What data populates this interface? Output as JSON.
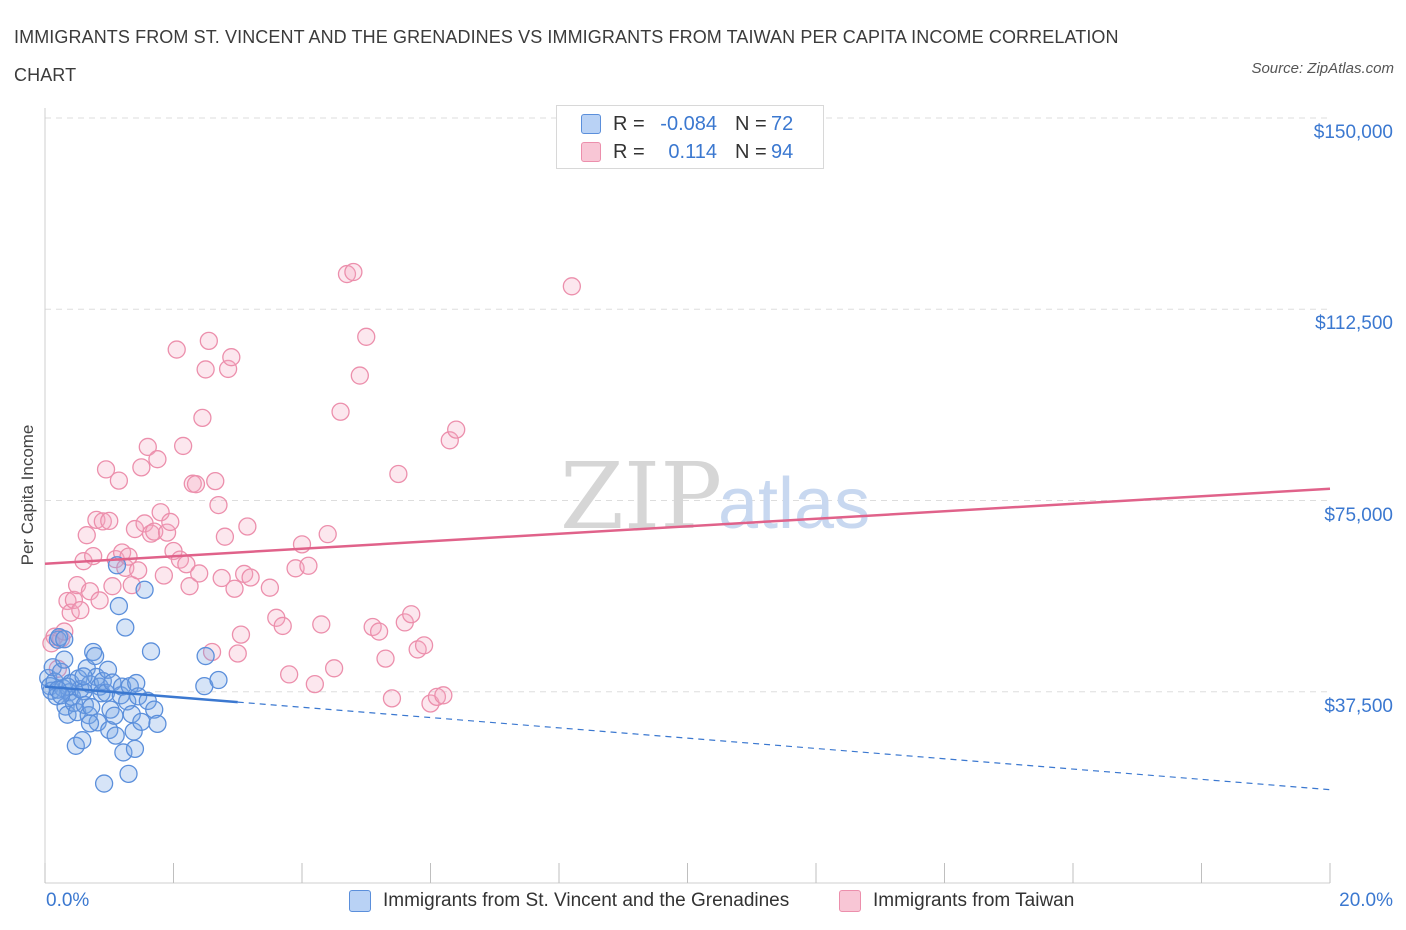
{
  "title": "IMMIGRANTS FROM ST. VINCENT AND THE GRENADINES VS IMMIGRANTS FROM TAIWAN PER CAPITA INCOME CORRELATION CHART",
  "source": "Source: ZipAtlas.com",
  "watermark": {
    "zip": "ZIP",
    "atlas": "atlas"
  },
  "legend": {
    "rows": [
      {
        "r_label": "R =",
        "r_value": "-0.084",
        "n_label": "N =",
        "n_value": "72",
        "color": "#5b8fdb",
        "fill": "#b9d2f5"
      },
      {
        "r_label": "R =",
        "r_value": "0.114",
        "n_label": "N =",
        "n_value": "94",
        "color": "#ec8fac",
        "fill": "#f8c6d5"
      }
    ]
  },
  "colors": {
    "blue": "#3b78d0",
    "pink": "#e0628a",
    "grid": "#dddddd"
  },
  "chart_data": {
    "type": "scatter",
    "xlabel": "",
    "ylabel": "Per Capita Income",
    "xlim": [
      0,
      20
    ],
    "ylim": [
      0,
      150000
    ],
    "x_tick_labels": [
      "0.0%",
      "20.0%"
    ],
    "y_ticks": [
      37500,
      75000,
      112500,
      150000
    ],
    "y_tick_labels": [
      "$37,500",
      "$75,000",
      "$112,500",
      "$150,000"
    ],
    "grid": true,
    "series": [
      {
        "name": "Immigrants from St. Vincent and the Grenadines",
        "color": "#3b78d0",
        "points": [
          [
            0.05,
            40200
          ],
          [
            0.08,
            38600
          ],
          [
            0.1,
            37700
          ],
          [
            0.12,
            42300
          ],
          [
            0.15,
            39500
          ],
          [
            0.18,
            36600
          ],
          [
            0.2,
            47700
          ],
          [
            0.22,
            48200
          ],
          [
            0.25,
            41400
          ],
          [
            0.28,
            38200
          ],
          [
            0.3,
            43800
          ],
          [
            0.32,
            34600
          ],
          [
            0.35,
            33000
          ],
          [
            0.38,
            37400
          ],
          [
            0.4,
            39200
          ],
          [
            0.42,
            36500
          ],
          [
            0.45,
            35300
          ],
          [
            0.48,
            26900
          ],
          [
            0.5,
            33500
          ],
          [
            0.52,
            40100
          ],
          [
            0.55,
            38000
          ],
          [
            0.58,
            28000
          ],
          [
            0.6,
            37600
          ],
          [
            0.62,
            34900
          ],
          [
            0.65,
            42100
          ],
          [
            0.68,
            32900
          ],
          [
            0.7,
            39000
          ],
          [
            0.72,
            34500
          ],
          [
            0.75,
            45300
          ],
          [
            0.78,
            44500
          ],
          [
            0.8,
            40400
          ],
          [
            0.82,
            31500
          ],
          [
            0.85,
            38500
          ],
          [
            0.88,
            37200
          ],
          [
            0.9,
            39600
          ],
          [
            0.92,
            19500
          ],
          [
            0.95,
            37300
          ],
          [
            0.98,
            41800
          ],
          [
            1.0,
            30000
          ],
          [
            1.02,
            34000
          ],
          [
            1.05,
            39300
          ],
          [
            1.08,
            32800
          ],
          [
            1.1,
            28900
          ],
          [
            1.12,
            62300
          ],
          [
            1.15,
            54300
          ],
          [
            1.18,
            36800
          ],
          [
            1.2,
            38500
          ],
          [
            1.22,
            25600
          ],
          [
            1.25,
            50100
          ],
          [
            1.28,
            35600
          ],
          [
            1.3,
            21400
          ],
          [
            1.32,
            38600
          ],
          [
            1.35,
            33100
          ],
          [
            1.38,
            29700
          ],
          [
            1.4,
            26300
          ],
          [
            1.42,
            39200
          ],
          [
            1.45,
            36600
          ],
          [
            1.5,
            31600
          ],
          [
            1.55,
            57500
          ],
          [
            1.6,
            35700
          ],
          [
            1.65,
            45400
          ],
          [
            1.7,
            34000
          ],
          [
            1.75,
            31200
          ],
          [
            2.48,
            38600
          ],
          [
            2.5,
            44500
          ],
          [
            2.7,
            39800
          ],
          [
            0.6,
            40500
          ],
          [
            0.7,
            31300
          ],
          [
            0.3,
            47800
          ],
          [
            0.35,
            38500
          ],
          [
            0.2,
            37900
          ],
          [
            0.25,
            36800
          ]
        ]
      },
      {
        "name": "Immigrants from Taiwan",
        "color": "#e0628a",
        "points": [
          [
            0.1,
            47000
          ],
          [
            0.15,
            48300
          ],
          [
            0.2,
            42000
          ],
          [
            0.25,
            47900
          ],
          [
            0.3,
            49300
          ],
          [
            0.35,
            55300
          ],
          [
            0.4,
            53000
          ],
          [
            0.45,
            55500
          ],
          [
            0.5,
            58400
          ],
          [
            0.55,
            53500
          ],
          [
            0.6,
            63100
          ],
          [
            0.65,
            68200
          ],
          [
            0.7,
            57200
          ],
          [
            0.75,
            64100
          ],
          [
            0.8,
            71200
          ],
          [
            0.85,
            55400
          ],
          [
            0.9,
            70900
          ],
          [
            0.95,
            81100
          ],
          [
            1.0,
            71000
          ],
          [
            1.05,
            58200
          ],
          [
            1.1,
            63500
          ],
          [
            1.15,
            78900
          ],
          [
            1.2,
            64800
          ],
          [
            1.25,
            61800
          ],
          [
            1.3,
            64000
          ],
          [
            1.35,
            58400
          ],
          [
            1.4,
            69400
          ],
          [
            1.45,
            61300
          ],
          [
            1.5,
            81500
          ],
          [
            1.55,
            70500
          ],
          [
            1.6,
            85500
          ],
          [
            1.65,
            68500
          ],
          [
            1.7,
            68900
          ],
          [
            1.75,
            83100
          ],
          [
            1.8,
            72700
          ],
          [
            1.85,
            60300
          ],
          [
            1.9,
            68700
          ],
          [
            1.95,
            70800
          ],
          [
            2.0,
            65100
          ],
          [
            2.05,
            104600
          ],
          [
            2.1,
            63400
          ],
          [
            2.15,
            85700
          ],
          [
            2.2,
            62500
          ],
          [
            2.25,
            58200
          ],
          [
            2.3,
            78300
          ],
          [
            2.35,
            78200
          ],
          [
            2.4,
            60700
          ],
          [
            2.45,
            91200
          ],
          [
            2.5,
            100700
          ],
          [
            2.55,
            106300
          ],
          [
            2.6,
            45300
          ],
          [
            2.65,
            78800
          ],
          [
            2.7,
            74100
          ],
          [
            2.75,
            59800
          ],
          [
            2.8,
            67900
          ],
          [
            2.85,
            100800
          ],
          [
            2.9,
            103100
          ],
          [
            2.95,
            57700
          ],
          [
            3.0,
            45000
          ],
          [
            3.05,
            48700
          ],
          [
            3.1,
            60600
          ],
          [
            3.15,
            69900
          ],
          [
            3.2,
            59900
          ],
          [
            3.5,
            57900
          ],
          [
            3.6,
            52000
          ],
          [
            3.7,
            50400
          ],
          [
            3.8,
            40900
          ],
          [
            3.9,
            61700
          ],
          [
            4.0,
            66400
          ],
          [
            4.1,
            62200
          ],
          [
            4.2,
            39000
          ],
          [
            4.3,
            50700
          ],
          [
            4.4,
            68400
          ],
          [
            4.5,
            42100
          ],
          [
            4.6,
            92400
          ],
          [
            4.7,
            119400
          ],
          [
            4.8,
            119800
          ],
          [
            4.9,
            99500
          ],
          [
            5.0,
            107100
          ],
          [
            5.1,
            50200
          ],
          [
            5.2,
            49300
          ],
          [
            5.3,
            44000
          ],
          [
            5.4,
            36200
          ],
          [
            5.5,
            80200
          ],
          [
            5.6,
            51100
          ],
          [
            5.7,
            52700
          ],
          [
            5.8,
            45800
          ],
          [
            5.9,
            46600
          ],
          [
            6.0,
            35200
          ],
          [
            6.1,
            36500
          ],
          [
            6.2,
            36800
          ],
          [
            6.3,
            86800
          ],
          [
            6.4,
            88900
          ],
          [
            8.2,
            117000
          ]
        ]
      }
    ],
    "trend_lines": [
      {
        "series": "Immigrants from St. Vincent and the Grenadines",
        "x": [
          0,
          20
        ],
        "y": [
          38500,
          18300
        ],
        "solid_until_x": 3.0
      },
      {
        "series": "Immigrants from Taiwan",
        "x": [
          0,
          20
        ],
        "y": [
          62600,
          77300
        ]
      }
    ]
  }
}
